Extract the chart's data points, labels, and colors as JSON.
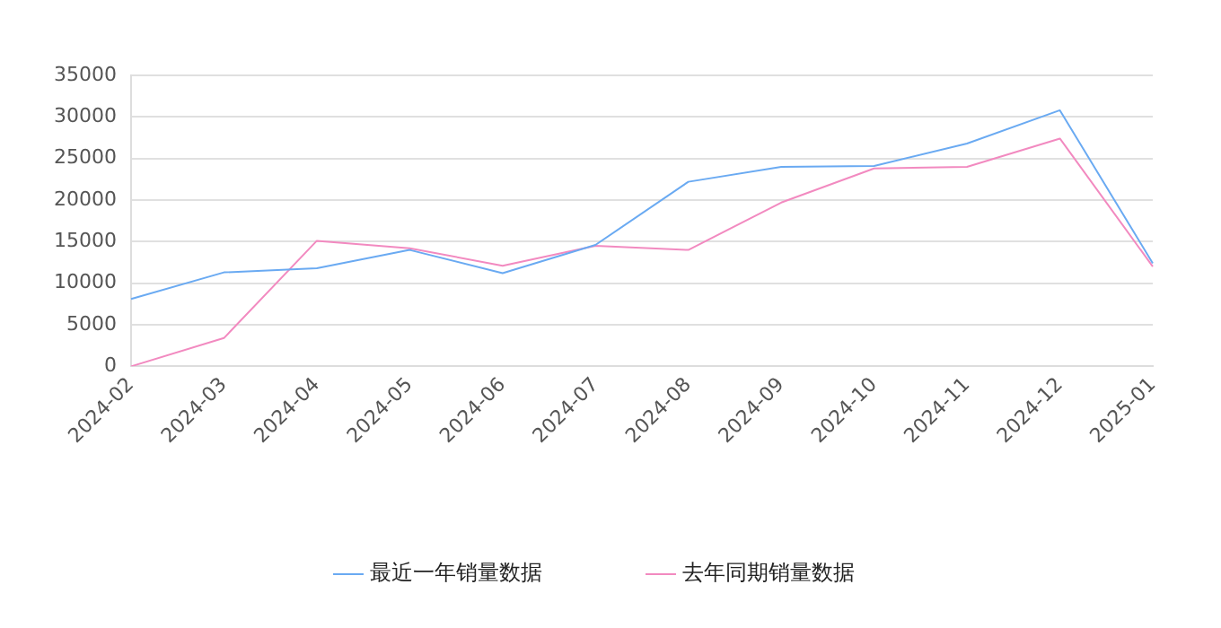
{
  "chart_data": {
    "type": "line",
    "categories": [
      "2024-02",
      "2024-03",
      "2024-04",
      "2024-05",
      "2024-06",
      "2024-07",
      "2024-08",
      "2024-09",
      "2024-10",
      "2024-11",
      "2024-12",
      "2025-01"
    ],
    "series": [
      {
        "name": "最近一年销量数据",
        "color": "#6aaaf2",
        "values": [
          8100,
          11300,
          11800,
          14000,
          11200,
          14600,
          22200,
          24000,
          24100,
          26800,
          30800,
          12400
        ]
      },
      {
        "name": "去年同期销量数据",
        "color": "#f28ac0",
        "values": [
          0,
          3400,
          15100,
          14200,
          12100,
          14500,
          14000,
          19700,
          23800,
          24000,
          27400,
          12000
        ]
      }
    ],
    "ylim": [
      0,
      35000
    ],
    "yticks": [
      0,
      5000,
      10000,
      15000,
      20000,
      25000,
      30000,
      35000
    ],
    "grid": "y",
    "legend": "bottom",
    "marker": "none",
    "line_style": "solid"
  }
}
